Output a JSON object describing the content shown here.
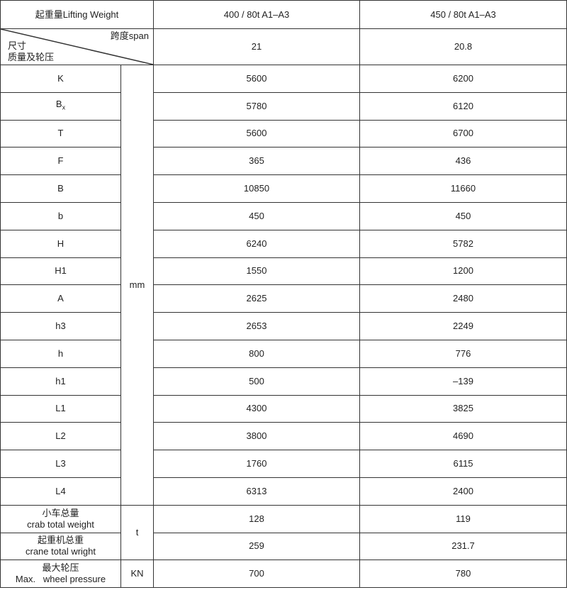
{
  "header": {
    "lifting_weight_label": "起重量Lifting Weight",
    "model_a": "400 / 80t  A1–A3",
    "model_b": "450 / 80t  A1–A3"
  },
  "span_row": {
    "span_label": "跨度span",
    "dimension_label": "尺寸",
    "mass_label": "质量及轮压",
    "value_a": "21",
    "value_b": "20.8"
  },
  "units": {
    "mm": "mm",
    "t": "t",
    "kn": "KN"
  },
  "dimension_rows": [
    {
      "label": "K",
      "a": "5600",
      "b": "6200"
    },
    {
      "label": "B",
      "sub": "x",
      "a": "5780",
      "b": "6120"
    },
    {
      "label": "T",
      "a": "5600",
      "b": "6700"
    },
    {
      "label": "F",
      "a": "365",
      "b": "436"
    },
    {
      "label": "B",
      "a": "10850",
      "b": "11660"
    },
    {
      "label": "b",
      "a": "450",
      "b": "450"
    },
    {
      "label": "H",
      "a": "6240",
      "b": "5782"
    },
    {
      "label": "H1",
      "a": "1550",
      "b": "1200"
    },
    {
      "label": "A",
      "a": "2625",
      "b": "2480"
    },
    {
      "label": "h3",
      "a": "2653",
      "b": "2249"
    },
    {
      "label": "h",
      "a": "800",
      "b": "776"
    },
    {
      "label": "h1",
      "a": "500",
      "b": "–139"
    },
    {
      "label": "L1",
      "a": "4300",
      "b": "3825"
    },
    {
      "label": "L2",
      "a": "3800",
      "b": "4690"
    },
    {
      "label": "L3",
      "a": "1760",
      "b": "6115"
    },
    {
      "label": "L4",
      "a": "6313",
      "b": "2400"
    }
  ],
  "weight_rows": [
    {
      "label_cn": "小车总量",
      "label_en": "crab total weight",
      "a": "128",
      "b": "119"
    },
    {
      "label_cn": "起重机总重",
      "label_en": "crane total wright",
      "a": "259",
      "b": "231.7"
    }
  ],
  "pressure_row": {
    "label_cn": "最大轮压",
    "label_en": "Max.   wheel pressure",
    "a": "700",
    "b": "780"
  }
}
